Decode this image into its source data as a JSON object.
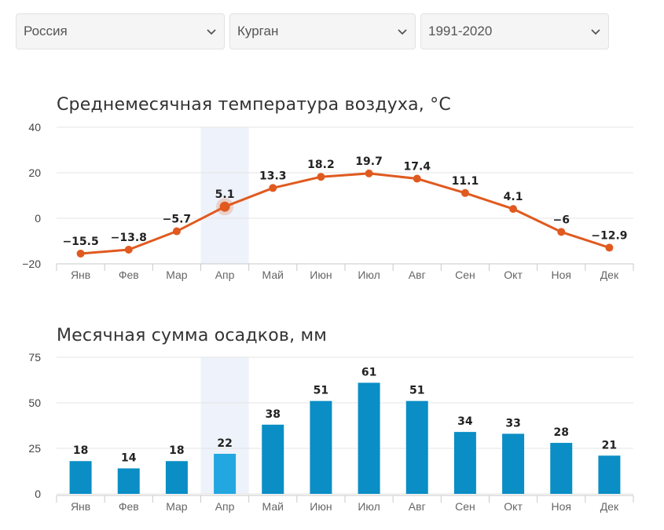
{
  "filters": {
    "country": {
      "value": "Россия"
    },
    "city": {
      "value": "Курган"
    },
    "period": {
      "value": "1991-2020"
    }
  },
  "colors": {
    "temperature_line": "#e05a1f",
    "precip_bar": "#0a8ec5",
    "precip_bar_highlight": "#22a7e0",
    "highlight_band": "#eef2fa"
  },
  "highlighted_month": "Апр",
  "chart_data": [
    {
      "type": "line",
      "title": "Среднемесячная температура воздуха, °C",
      "categories": [
        "Янв",
        "Фев",
        "Мар",
        "Апр",
        "Май",
        "Июн",
        "Июл",
        "Авг",
        "Сен",
        "Окт",
        "Ноя",
        "Дек"
      ],
      "values": [
        -15.5,
        -13.8,
        -5.7,
        5.1,
        13.3,
        18.2,
        19.7,
        17.4,
        11.1,
        4.1,
        -6,
        -12.9
      ],
      "data_labels": [
        "−15.5",
        "−13.8",
        "−5.7",
        "5.1",
        "13.3",
        "18.2",
        "19.7",
        "17.4",
        "11.1",
        "4.1",
        "−6",
        "−12.9"
      ],
      "yticks": [
        "40",
        "20",
        "0",
        "−20"
      ],
      "ylim": [
        -20,
        40
      ],
      "grid": true
    },
    {
      "type": "bar",
      "title": "Месячная сумма осадков, мм",
      "categories": [
        "Янв",
        "Фев",
        "Мар",
        "Апр",
        "Май",
        "Июн",
        "Июл",
        "Авг",
        "Сен",
        "Окт",
        "Ноя",
        "Дек"
      ],
      "values": [
        18,
        14,
        18,
        22,
        38,
        51,
        61,
        51,
        34,
        33,
        28,
        21
      ],
      "yticks": [
        "75",
        "50",
        "25",
        "0"
      ],
      "ylim": [
        0,
        75
      ],
      "grid": true
    }
  ]
}
